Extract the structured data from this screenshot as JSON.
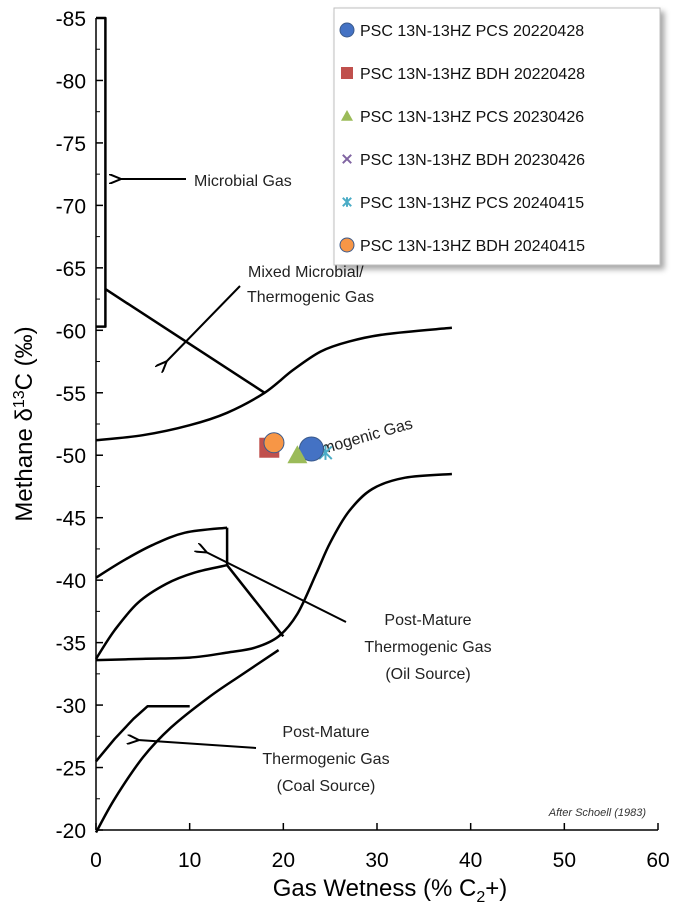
{
  "chart_data": {
    "type": "scatter",
    "xlabel_main": "Gas Wetness (% C",
    "xlabel_sub": "2",
    "xlabel_tail": "+)",
    "ylabel_main": "Methane  δ",
    "ylabel_sup": "13",
    "ylabel_tail": "C (‰)",
    "xlim": [
      0,
      60
    ],
    "ylim": [
      -85,
      -20
    ],
    "x_ticks": [
      "0",
      "10",
      "20",
      "30",
      "40",
      "50",
      "60"
    ],
    "y_ticks": [
      "-85",
      "-80",
      "-75",
      "-70",
      "-65",
      "-60",
      "-55",
      "-50",
      "-45",
      "-40",
      "-35",
      "-30",
      "-25",
      "-20"
    ],
    "legend_position": "top-right",
    "series": [
      {
        "name": "PSC 13N-13HZ PCS 20220428",
        "marker": "circle",
        "color": "#4472C4",
        "points": [
          [
            23.0,
            -50.5
          ]
        ]
      },
      {
        "name": "PSC 13N-13HZ BDH 20220428",
        "marker": "square",
        "color": "#C0504D",
        "points": [
          [
            18.5,
            -50.6
          ]
        ]
      },
      {
        "name": "PSC 13N-13HZ PCS 20230426",
        "marker": "triangle",
        "color": "#9BBB59",
        "points": [
          [
            21.5,
            -50.0
          ]
        ]
      },
      {
        "name": "PSC 13N-13HZ BDH 20230426",
        "marker": "x",
        "color": "#8064A2",
        "points": [
          [
            18.2,
            -50.4
          ]
        ]
      },
      {
        "name": "PSC 13N-13HZ PCS 20240415",
        "marker": "star",
        "color": "#4BACC6",
        "points": [
          [
            24.5,
            -50.2
          ]
        ]
      },
      {
        "name": "PSC 13N-13HZ BDH 20240415",
        "marker": "circle",
        "color": "#F79646",
        "points": [
          [
            19.0,
            -51.0
          ]
        ]
      }
    ],
    "annotations": {
      "microbial": "Microbial Gas",
      "mixed_line1": "Mixed Microbial/",
      "mixed_line2": "Thermogenic Gas",
      "thermogenic_fragment": "mogenic Gas",
      "oil_line1": "Post-Mature",
      "oil_line2": "Thermogenic Gas",
      "oil_line3": "(Oil Source)",
      "coal_line1": "Post-Mature",
      "coal_line2": "Thermogenic Gas",
      "coal_line3": "(Coal Source)",
      "credit": "After Schoell (1983)"
    },
    "boundaries": {
      "microbial_box": [
        [
          0,
          -85
        ],
        [
          1,
          -85
        ],
        [
          1,
          -60.3
        ],
        [
          0,
          -60.3
        ]
      ],
      "microbial_mixed_line": [
        [
          1,
          -63.3
        ],
        [
          18,
          -55
        ]
      ],
      "upper_curve": [
        [
          0,
          -51.2
        ],
        [
          5,
          -51.6
        ],
        [
          10,
          -52.4
        ],
        [
          14,
          -53.4
        ],
        [
          18,
          -55
        ],
        [
          21,
          -56.8
        ],
        [
          24,
          -58.3
        ],
        [
          27,
          -59.1
        ],
        [
          31,
          -59.7
        ],
        [
          38,
          -60.2
        ]
      ],
      "lower_curve": [
        [
          0,
          -33.6
        ],
        [
          5,
          -33.7
        ],
        [
          10,
          -33.8
        ],
        [
          14,
          -34.2
        ],
        [
          17,
          -34.6
        ],
        [
          19.5,
          -35.5
        ],
        [
          21.5,
          -37.3
        ],
        [
          23.5,
          -40.5
        ],
        [
          25,
          -43
        ],
        [
          27,
          -45.5
        ],
        [
          29.5,
          -47.3
        ],
        [
          33,
          -48.2
        ],
        [
          38,
          -48.5
        ]
      ],
      "oil_upper": [
        [
          0,
          -40.2
        ],
        [
          3,
          -41.6
        ],
        [
          6,
          -42.8
        ],
        [
          9.5,
          -43.8
        ],
        [
          14,
          -44.2
        ]
      ],
      "oil_right": [
        [
          14,
          -44.2
        ],
        [
          14,
          -41.2
        ]
      ],
      "oil_inner": [
        [
          0,
          -33.7
        ],
        [
          2,
          -36
        ],
        [
          4.5,
          -38.2
        ],
        [
          7.5,
          -39.7
        ],
        [
          10.5,
          -40.6
        ],
        [
          14,
          -41.2
        ]
      ],
      "oil_diagonal": [
        [
          14,
          -41.2
        ],
        [
          20,
          -35.5
        ]
      ],
      "coal_upper": [
        [
          0,
          -25.5
        ],
        [
          2,
          -27.3
        ],
        [
          4,
          -28.9
        ],
        [
          5.5,
          -29.9
        ],
        [
          10,
          -29.9
        ]
      ],
      "coal_outer": [
        [
          0,
          -19.8
        ],
        [
          2,
          -22.5
        ],
        [
          5,
          -25.8
        ],
        [
          8,
          -28.2
        ],
        [
          12,
          -30.6
        ],
        [
          15.5,
          -32.4
        ],
        [
          19.5,
          -34.4
        ]
      ]
    }
  }
}
